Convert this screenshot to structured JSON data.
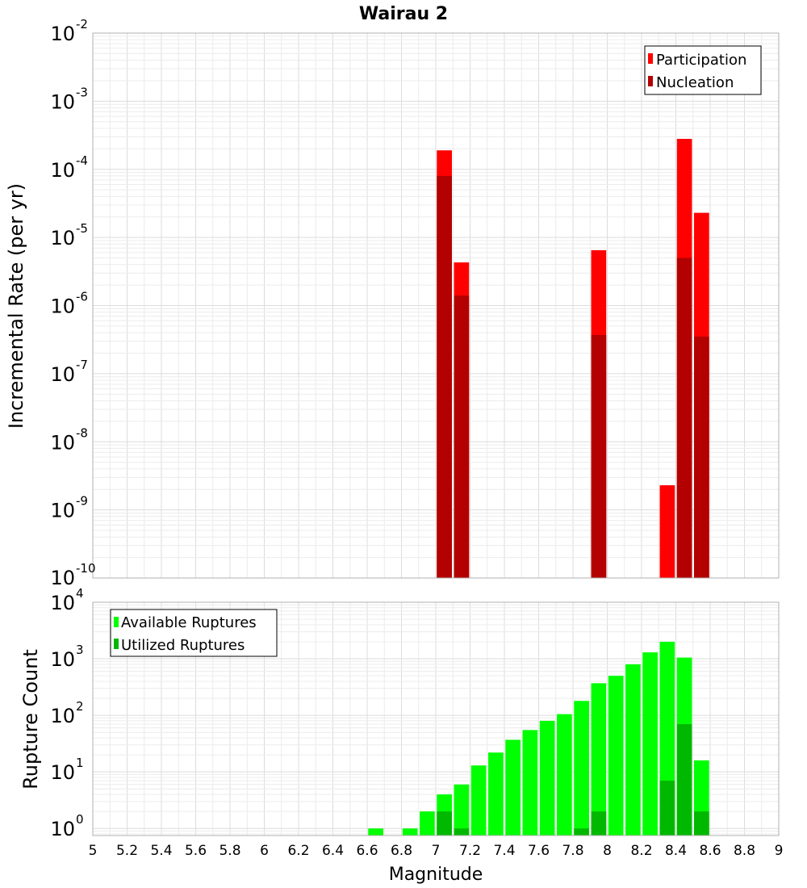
{
  "title": "Wairau 2",
  "xlabel": "Magnitude",
  "x_ticks": [
    "5",
    "5.2",
    "5.4",
    "5.6",
    "5.8",
    "6",
    "6.2",
    "6.4",
    "6.6",
    "6.8",
    "7",
    "7.2",
    "7.4",
    "7.6",
    "7.8",
    "8",
    "8.2",
    "8.4",
    "8.6",
    "8.8",
    "9"
  ],
  "chart_data": [
    {
      "type": "bar",
      "title": "Wairau 2",
      "xlabel": "Magnitude",
      "ylabel": "Incremental Rate (per yr)",
      "yscale": "log",
      "ylim": [
        1e-10,
        0.01
      ],
      "xlim": [
        5,
        9
      ],
      "y_tick_exponents": [
        "-10",
        "-9",
        "-8",
        "-7",
        "-6",
        "-5",
        "-4",
        "-3",
        "-2"
      ],
      "grid": true,
      "legend_position": "top-right",
      "series": [
        {
          "name": "Participation",
          "color": "#ff0000",
          "points": [
            [
              7.05,
              0.00019
            ],
            [
              7.15,
              4.3e-06
            ],
            [
              7.95,
              6.5e-06
            ],
            [
              8.35,
              2.3e-09
            ],
            [
              8.45,
              0.00028
            ],
            [
              8.55,
              2.3e-05
            ]
          ]
        },
        {
          "name": "Nucleation",
          "color": "#b30000",
          "points": [
            [
              7.05,
              8e-05
            ],
            [
              7.15,
              1.4e-06
            ],
            [
              7.95,
              3.7e-07
            ],
            [
              8.45,
              5e-06
            ],
            [
              8.55,
              3.5e-07
            ]
          ]
        }
      ]
    },
    {
      "type": "bar",
      "ylabel": "Rupture Count",
      "xlabel": "Magnitude",
      "yscale": "log",
      "ylim": [
        0.75,
        10000
      ],
      "xlim": [
        5,
        9
      ],
      "y_tick_exponents": [
        "0",
        "1",
        "2",
        "3",
        "4"
      ],
      "grid": true,
      "legend_position": "top-left",
      "series": [
        {
          "name": "Available Ruptures",
          "color": "#00ff00",
          "points": [
            [
              6.65,
              1
            ],
            [
              6.85,
              1
            ],
            [
              6.95,
              2
            ],
            [
              7.05,
              4
            ],
            [
              7.15,
              6
            ],
            [
              7.25,
              13
            ],
            [
              7.35,
              22
            ],
            [
              7.45,
              37
            ],
            [
              7.55,
              55
            ],
            [
              7.65,
              80
            ],
            [
              7.75,
              105
            ],
            [
              7.85,
              180
            ],
            [
              7.95,
              370
            ],
            [
              8.05,
              500
            ],
            [
              8.15,
              800
            ],
            [
              8.25,
              1300
            ],
            [
              8.35,
              2000
            ],
            [
              8.45,
              1050
            ],
            [
              8.55,
              16
            ]
          ]
        },
        {
          "name": "Utilized Ruptures",
          "color": "#00b800",
          "points": [
            [
              7.05,
              2
            ],
            [
              7.15,
              1
            ],
            [
              7.85,
              1
            ],
            [
              7.95,
              2
            ],
            [
              8.35,
              7
            ],
            [
              8.45,
              70
            ],
            [
              8.55,
              2
            ]
          ]
        }
      ]
    }
  ]
}
